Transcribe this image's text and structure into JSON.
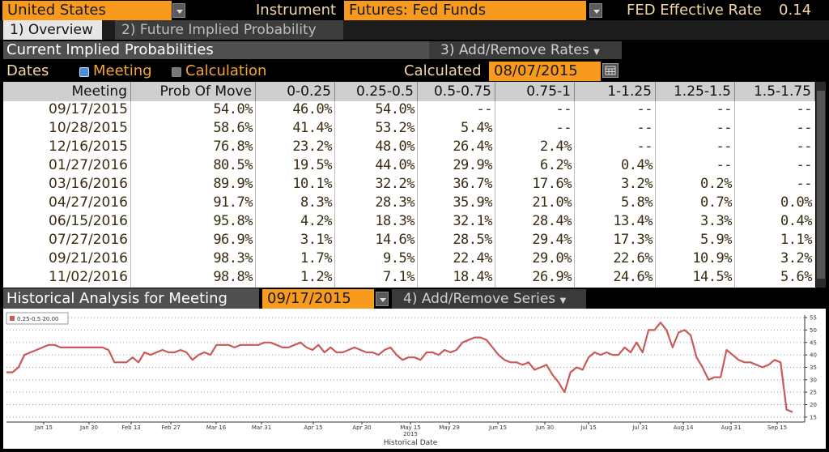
{
  "header": {
    "country": "United States",
    "instrument_label": "Instrument",
    "instrument_value": "Futures: Fed Funds",
    "rate_label": "FED Effective Rate",
    "rate_value": "0.14"
  },
  "tabs": [
    {
      "label": "1) Overview"
    },
    {
      "label": "2) Future Implied Probability"
    }
  ],
  "section": {
    "title": "Current Implied Probabilities",
    "add_remove_rates": "3) Add/Remove Rates"
  },
  "dates_row": {
    "label": "Dates",
    "meeting": "Meeting",
    "calculation": "Calculation",
    "calculated_label": "Calculated",
    "calculated_value": "08/07/2015"
  },
  "table": {
    "headers": [
      "Meeting",
      "Prob Of Move",
      "0-0.25",
      "0.25-0.5",
      "0.5-0.75",
      "0.75-1",
      "1-1.25",
      "1.25-1.5",
      "1.5-1.75"
    ],
    "rows": [
      [
        "09/17/2015",
        "54.0%",
        "46.0%",
        "54.0%",
        "--",
        "--",
        "--",
        "--",
        "--"
      ],
      [
        "10/28/2015",
        "58.6%",
        "41.4%",
        "53.2%",
        "5.4%",
        "--",
        "--",
        "--",
        "--"
      ],
      [
        "12/16/2015",
        "76.8%",
        "23.2%",
        "48.0%",
        "26.4%",
        "2.4%",
        "--",
        "--",
        "--"
      ],
      [
        "01/27/2016",
        "80.5%",
        "19.5%",
        "44.0%",
        "29.9%",
        "6.2%",
        "0.4%",
        "--",
        "--"
      ],
      [
        "03/16/2016",
        "89.9%",
        "10.1%",
        "32.2%",
        "36.7%",
        "17.6%",
        "3.2%",
        "0.2%",
        "--"
      ],
      [
        "04/27/2016",
        "91.7%",
        "8.3%",
        "28.3%",
        "35.9%",
        "21.0%",
        "5.8%",
        "0.7%",
        "0.0%"
      ],
      [
        "06/15/2016",
        "95.8%",
        "4.2%",
        "18.3%",
        "32.1%",
        "28.4%",
        "13.4%",
        "3.3%",
        "0.4%"
      ],
      [
        "07/27/2016",
        "96.9%",
        "3.1%",
        "14.6%",
        "28.5%",
        "29.4%",
        "17.3%",
        "5.9%",
        "1.1%"
      ],
      [
        "09/21/2016",
        "98.3%",
        "1.7%",
        "9.5%",
        "22.4%",
        "29.0%",
        "22.6%",
        "10.9%",
        "3.2%"
      ],
      [
        "11/02/2016",
        "98.8%",
        "1.2%",
        "7.1%",
        "18.4%",
        "26.9%",
        "24.6%",
        "14.5%",
        "5.6%"
      ]
    ]
  },
  "historical": {
    "label": "Historical Analysis for Meeting",
    "meeting_value": "09/17/2015",
    "add_remove_series": "4) Add/Remove Series"
  },
  "chart_data": {
    "type": "line",
    "legend": "0.25-0.5 20.00",
    "series_color": "#c85a5a",
    "xlabel": "Historical Date",
    "x_ticks": [
      "Jan 15",
      "Jan 30",
      "Feb 13",
      "Feb 27",
      "Mar 16",
      "Mar 31",
      "Apr 15",
      "Apr 30",
      "May 15",
      "May 29",
      "Jun 15",
      "Jun 30",
      "Jul 15",
      "Jul 31",
      "Aug 14",
      "Aug 31",
      "Sep 15"
    ],
    "x_year_label": "2015",
    "y_ticks": [
      15,
      20,
      25,
      30,
      35,
      40,
      45,
      50,
      55
    ],
    "ylim": [
      13,
      56
    ],
    "values": [
      33,
      33,
      35,
      40,
      41,
      42,
      43,
      44,
      44,
      43,
      43,
      43,
      43,
      43,
      43,
      43,
      43,
      42,
      37,
      37,
      37,
      39,
      37,
      41,
      40,
      41,
      42,
      41,
      41,
      42,
      41,
      38,
      40,
      41,
      40,
      44,
      44,
      44,
      43,
      44,
      44,
      44,
      44,
      45,
      45,
      44,
      43,
      43,
      44,
      45,
      43,
      42,
      44,
      41,
      43,
      41,
      41,
      42,
      43,
      42,
      41,
      41,
      40,
      42,
      43,
      40,
      38,
      39,
      39,
      38,
      41,
      41,
      40,
      42,
      41,
      42,
      45,
      46,
      47,
      47,
      46,
      43,
      40,
      38,
      37,
      37,
      36,
      37,
      34,
      35,
      36,
      32,
      29,
      25,
      33,
      35,
      34,
      39,
      41,
      40,
      41,
      40,
      40,
      43,
      41,
      45,
      41,
      50,
      50,
      53,
      50,
      43,
      49,
      50,
      48,
      39,
      35,
      30,
      31,
      31,
      42,
      40,
      38,
      37,
      37,
      36,
      35,
      36,
      38,
      37,
      18,
      17
    ]
  }
}
